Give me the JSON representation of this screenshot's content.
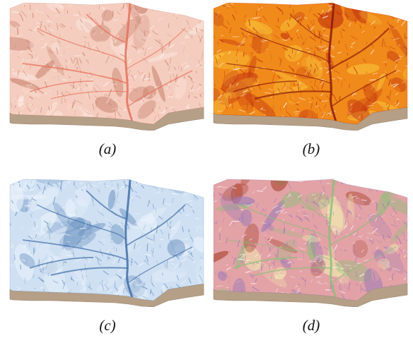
{
  "panels": [
    {
      "id": "a",
      "caption": "(a)",
      "style": "pink-shaded-relief",
      "colors": {
        "base": "#f5cdbf",
        "light": "#fbe6de",
        "dark": "#c9846f",
        "stream": "#e8705a"
      }
    },
    {
      "id": "b",
      "caption": "(b)",
      "style": "orange-red-elevation-hypsometric",
      "colors": {
        "base": "#f08a1a",
        "light": "#f8c23a",
        "dark": "#c3330f",
        "stream": "#8a1a0c"
      }
    },
    {
      "id": "c",
      "caption": "(c)",
      "style": "blue-shaded-relief",
      "colors": {
        "base": "#cfe0f2",
        "light": "#eaf2fb",
        "dark": "#6d94c2",
        "stream": "#3f6ea8"
      }
    },
    {
      "id": "d",
      "caption": "(d)",
      "style": "multiclass-landform-colors",
      "colors": {
        "base": "#e3a2a6",
        "light": "#f0ecb0",
        "dark": "#9a7ab8",
        "stream": "#8cbf7a",
        "accent": "#a83b22"
      }
    }
  ],
  "terrain_base_color": "#b59f86"
}
